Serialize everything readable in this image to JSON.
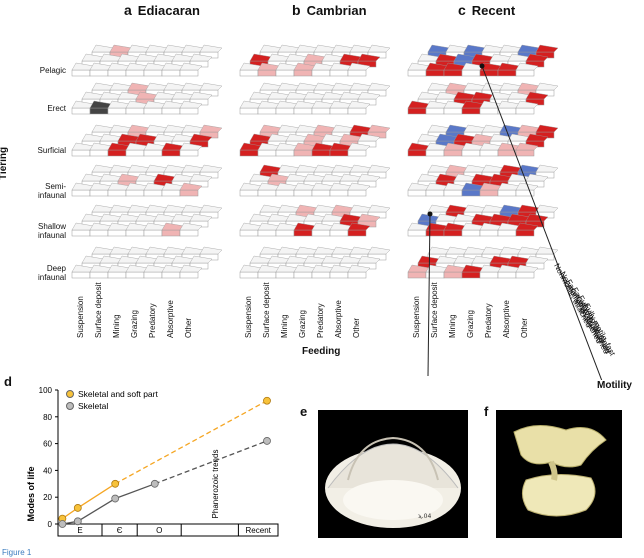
{
  "panels": [
    {
      "letter": "a",
      "title": "Ediacaran"
    },
    {
      "letter": "b",
      "title": "Cambrian"
    },
    {
      "letter": "c",
      "title": "Recent"
    }
  ],
  "tiers": [
    "Pelagic",
    "Erect",
    "Surficial",
    "Semi-\ninfaunal",
    "Shallow\ninfaunal",
    "Deep\ninfaunal"
  ],
  "tiering_label": "Tiering",
  "feeding_label": "Feeding",
  "motility_label": "Motility",
  "feeding_modes": [
    "Suspension",
    "Surface deposit",
    "Mining",
    "Grazing",
    "Predatory",
    "Absorptive",
    "Other"
  ],
  "motility_modes": [
    "Nonmotile, attached",
    "Nonmotile, unattached",
    "Facultative, unattached",
    "Facultative, attached",
    "Fully motile, slow",
    "Fully motile, fast"
  ],
  "colors": {
    "red": "#d42020",
    "pink": "#f0b4b4",
    "blue": "#5a78c8",
    "dark": "#444444",
    "grid": "#9a9a9a"
  },
  "chart_d": {
    "type": "line",
    "ylabel": "Modes of life",
    "ylim": [
      0,
      100
    ],
    "yticks": [
      0,
      20,
      40,
      60,
      80,
      100
    ],
    "x_categories": [
      "E",
      "Є",
      "O",
      "",
      "Recent"
    ],
    "annotation": "Phanerozoic trends",
    "series": [
      {
        "name": "Skeletal and soft part",
        "color": "#f5a623",
        "points": [
          [
            0.1,
            4
          ],
          [
            0.45,
            12
          ],
          [
            1.3,
            30
          ],
          [
            4.75,
            92
          ]
        ]
      },
      {
        "name": "Skeletal",
        "color": "#a0a0a0",
        "points": [
          [
            0.1,
            0
          ],
          [
            0.45,
            2
          ],
          [
            1.3,
            19
          ],
          [
            2.2,
            30
          ],
          [
            4.75,
            62
          ]
        ]
      }
    ]
  },
  "photos": [
    {
      "letter": "e"
    },
    {
      "letter": "f"
    }
  ],
  "footer": "Figure 1"
}
